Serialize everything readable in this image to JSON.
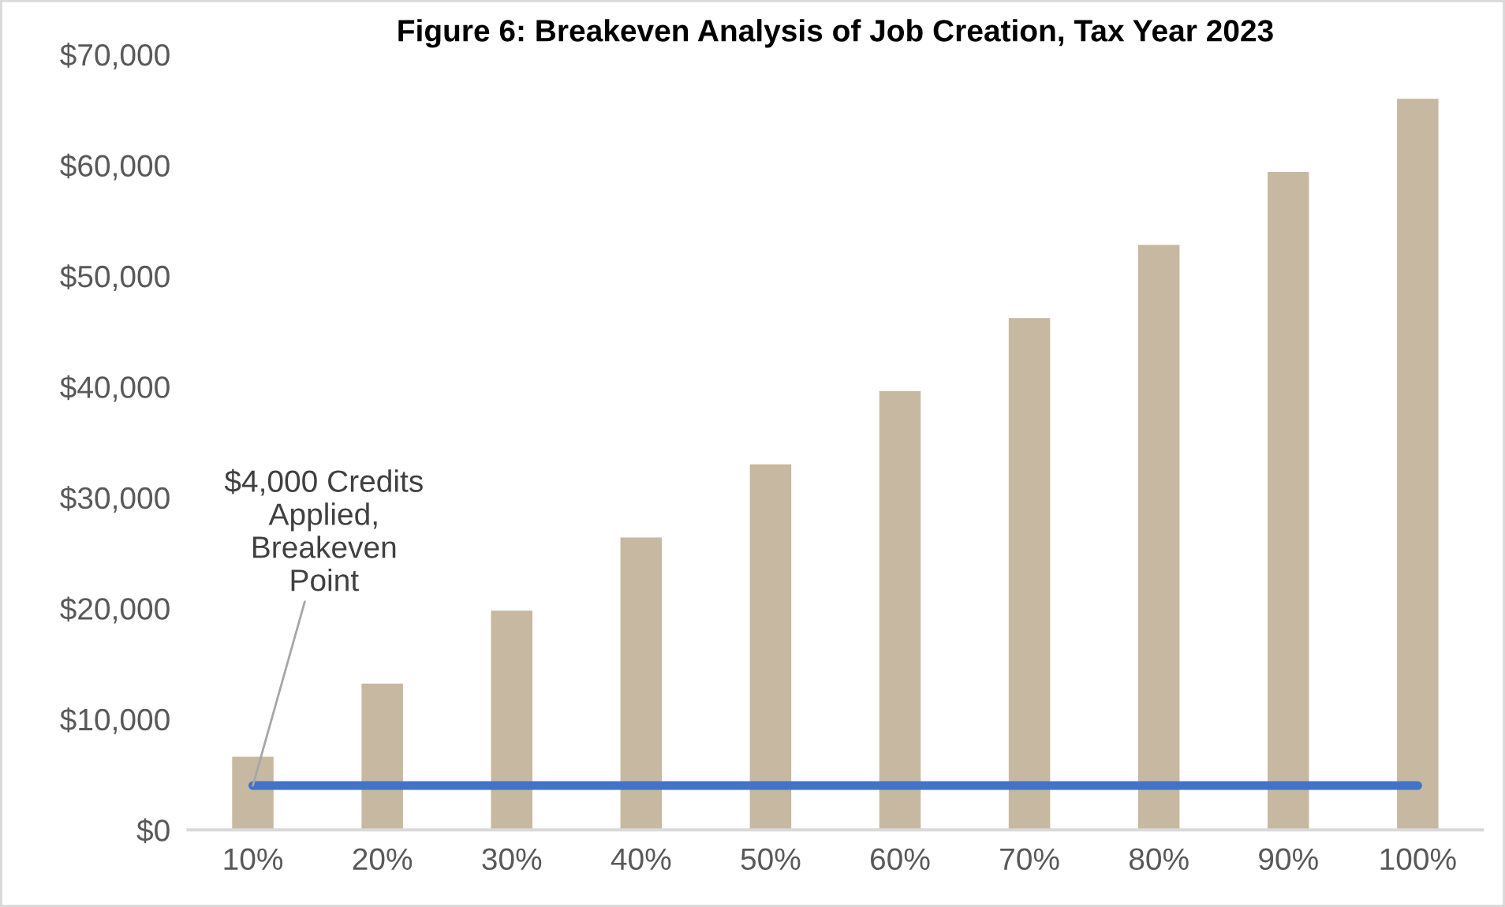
{
  "chart_data": {
    "type": "bar",
    "title": "Figure 6: Breakeven Analysis of Job Creation, Tax Year 2023",
    "categories": [
      "10%",
      "20%",
      "30%",
      "40%",
      "50%",
      "60%",
      "70%",
      "80%",
      "90%",
      "100%"
    ],
    "series": [
      {
        "color": "#c7b8a1",
        "values": [
          6600,
          13200,
          19800,
          26400,
          33000,
          39600,
          46200,
          52800,
          59400,
          66000
        ]
      },
      {
        "type": "line",
        "color": "#4472c4",
        "values": [
          4000,
          4000,
          4000,
          4000,
          4000,
          4000,
          4000,
          4000,
          4000,
          4000
        ]
      }
    ],
    "ylim": [
      0,
      70000
    ],
    "yticks": [
      {
        "value": 0,
        "label": "$0"
      },
      {
        "value": 10000,
        "label": "$10,000"
      },
      {
        "value": 20000,
        "label": "$20,000"
      },
      {
        "value": 30000,
        "label": "$30,000"
      },
      {
        "value": 40000,
        "label": "$40,000"
      },
      {
        "value": 50000,
        "label": "$50,000"
      },
      {
        "value": 60000,
        "label": "$60,000"
      },
      {
        "value": 70000,
        "label": "$70,000"
      }
    ],
    "annotations": [
      {
        "text": "$4,000 Credits\nApplied,\nBreakeven\nPoint",
        "x": "10%",
        "y": 4000
      }
    ],
    "grid": false,
    "marker": "none",
    "line_style": "solid"
  }
}
